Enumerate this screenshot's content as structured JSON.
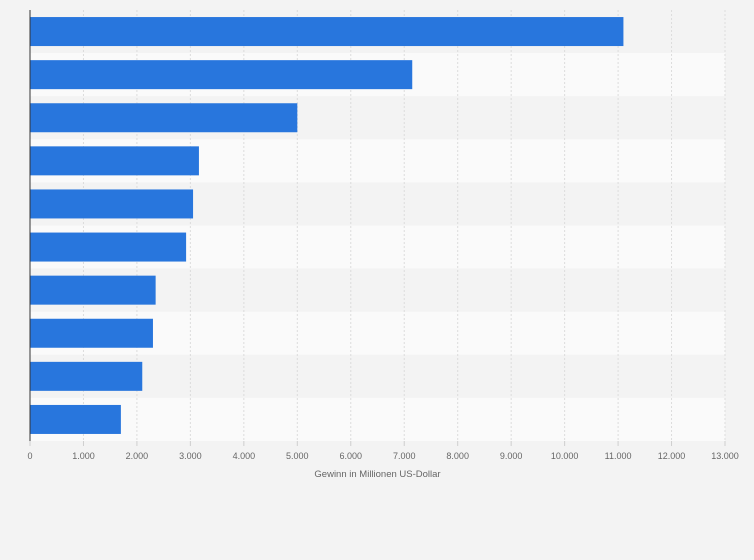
{
  "chart_data": {
    "type": "bar",
    "orientation": "horizontal",
    "categories": [
      "",
      "",
      "",
      "",
      "",
      "",
      "",
      "",
      "",
      ""
    ],
    "values": [
      11100,
      7150,
      5000,
      3160,
      3050,
      2920,
      2350,
      2300,
      2100,
      1700
    ],
    "title": "",
    "xlabel": "Gewinn in Millionen US-Dollar",
    "ylabel": "",
    "xlim": [
      0,
      13000
    ],
    "xticks": [
      0,
      1000,
      2000,
      3000,
      4000,
      5000,
      6000,
      7000,
      8000,
      9000,
      10000,
      11000,
      12000,
      13000
    ],
    "xtick_labels": [
      "0",
      "1.000",
      "2.000",
      "3.000",
      "4.000",
      "5.000",
      "6.000",
      "7.000",
      "8.000",
      "9.000",
      "10.000",
      "11.000",
      "12.000",
      "13.000"
    ],
    "grid": "vertical",
    "bar_color": "#2876dd",
    "band_colors": [
      "#f3f3f3",
      "#fafafa"
    ],
    "gridline_color": "#dcdcdc",
    "axis_color": "#333333"
  }
}
